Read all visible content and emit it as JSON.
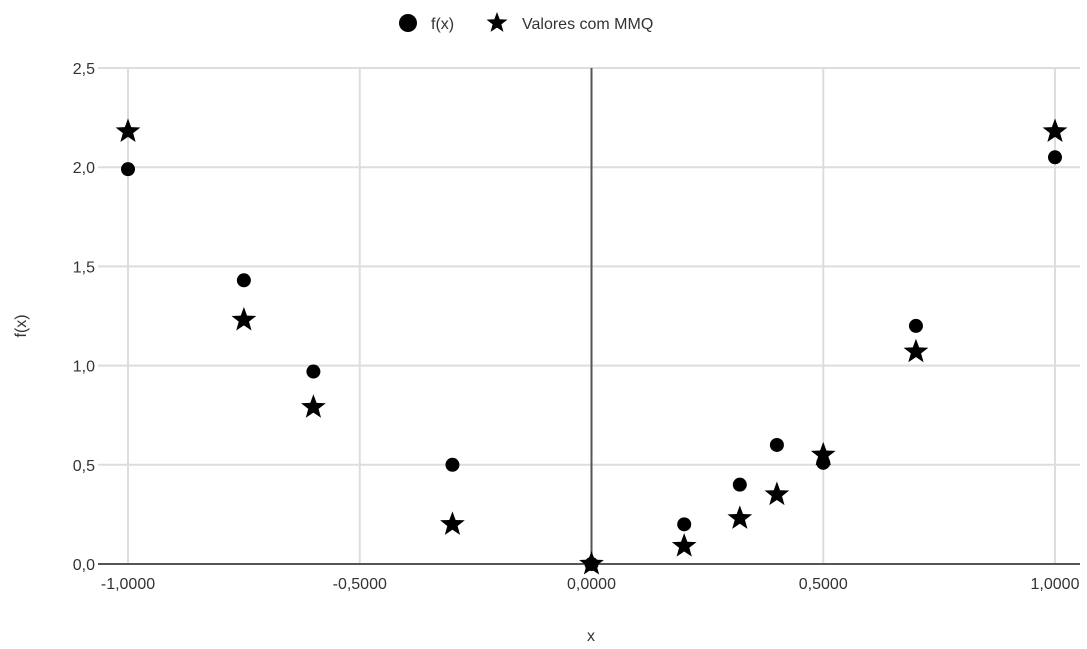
{
  "chart_data": {
    "type": "scatter",
    "xlabel": "x",
    "ylabel": "f(x)",
    "xlim": [
      -1.0,
      1.0
    ],
    "ylim": [
      0.0,
      2.5
    ],
    "x_ticks": [
      -1.0,
      -0.5,
      0.0,
      0.5,
      1.0
    ],
    "x_tick_labels": [
      "-1,0000",
      "-0,5000",
      "0,0000",
      "0,5000",
      "1,0000"
    ],
    "y_ticks": [
      0.0,
      0.5,
      1.0,
      1.5,
      2.0,
      2.5
    ],
    "y_tick_labels": [
      "0,0",
      "0,5",
      "1,0",
      "1,5",
      "2,0",
      "2,5"
    ],
    "grid": true,
    "legend_position": "top-center",
    "series": [
      {
        "name": "f(x)",
        "marker": "circle",
        "color": "#000000",
        "points": [
          {
            "x": -1.0,
            "y": 1.99
          },
          {
            "x": -0.75,
            "y": 1.43
          },
          {
            "x": -0.6,
            "y": 0.97
          },
          {
            "x": -0.3,
            "y": 0.5
          },
          {
            "x": 0.0,
            "y": 0.0
          },
          {
            "x": 0.2,
            "y": 0.2
          },
          {
            "x": 0.32,
            "y": 0.4
          },
          {
            "x": 0.4,
            "y": 0.6
          },
          {
            "x": 0.5,
            "y": 0.51
          },
          {
            "x": 0.7,
            "y": 1.2
          },
          {
            "x": 1.0,
            "y": 2.05
          }
        ]
      },
      {
        "name": "Valores com MMQ",
        "marker": "star",
        "color": "#000000",
        "points": [
          {
            "x": -1.0,
            "y": 2.18
          },
          {
            "x": -0.75,
            "y": 1.23
          },
          {
            "x": -0.6,
            "y": 0.79
          },
          {
            "x": -0.3,
            "y": 0.2
          },
          {
            "x": 0.0,
            "y": 0.0
          },
          {
            "x": 0.2,
            "y": 0.09
          },
          {
            "x": 0.32,
            "y": 0.23
          },
          {
            "x": 0.4,
            "y": 0.35
          },
          {
            "x": 0.5,
            "y": 0.55
          },
          {
            "x": 0.7,
            "y": 1.07
          },
          {
            "x": 1.0,
            "y": 2.18
          }
        ]
      }
    ]
  }
}
